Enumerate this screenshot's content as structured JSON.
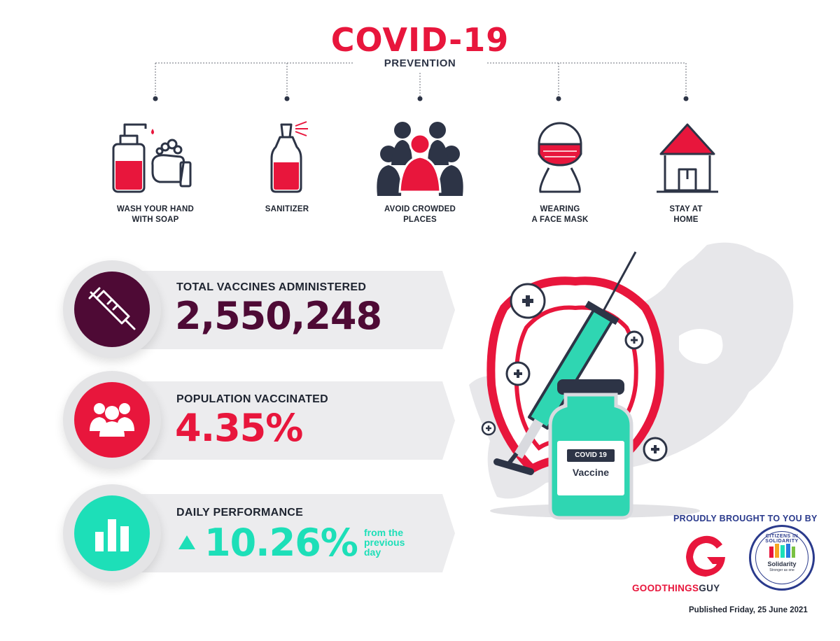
{
  "header": {
    "title": "COVID-19",
    "subtitle": "PREVENTION"
  },
  "prevention": [
    {
      "label_line1": "WASH YOUR HAND",
      "label_line2": "WITH SOAP",
      "icon": "soap-hands-icon"
    },
    {
      "label_line1": "SANITIZER",
      "label_line2": "",
      "icon": "sanitizer-icon"
    },
    {
      "label_line1": "AVOID CROWDED",
      "label_line2": "PLACES",
      "icon": "crowd-icon"
    },
    {
      "label_line1": "WEARING",
      "label_line2": "A FACE MASK",
      "icon": "face-mask-icon"
    },
    {
      "label_line1": "STAY AT",
      "label_line2": "HOME",
      "icon": "home-icon"
    }
  ],
  "stats": [
    {
      "label": "TOTAL VACCINES ADMINISTERED",
      "value": "2,550,248",
      "color": "#4e0a35",
      "icon": "syringe-icon"
    },
    {
      "label": "POPULATION VACCINATED",
      "value": "4.35%",
      "color": "#e8163c",
      "icon": "people-icon"
    },
    {
      "label": "DAILY PERFORMANCE",
      "value": "10.26%",
      "color": "#1ddfb8",
      "icon": "bar-chart-icon",
      "suffix_line1": "from the",
      "suffix_line2": "previous",
      "suffix_line3": "day"
    }
  ],
  "vaccine_illustration": {
    "vial_line1": "COVID 19",
    "vial_line2": "Vaccine"
  },
  "footer": {
    "brought": "PROUDLY BROUGHT TO YOU BY",
    "brand_good": "GOODTHINGS",
    "brand_guy": "GUY",
    "seal_text": "CITIZENS IN SOLIDARITY",
    "seal_inner": "Solidarity",
    "seal_sub": "Stronger as one",
    "published": "Published Friday, 25 June 2021"
  },
  "colors": {
    "red": "#e8163c",
    "navy": "#2d3446",
    "plum": "#4e0a35",
    "teal": "#1ddfb8"
  }
}
